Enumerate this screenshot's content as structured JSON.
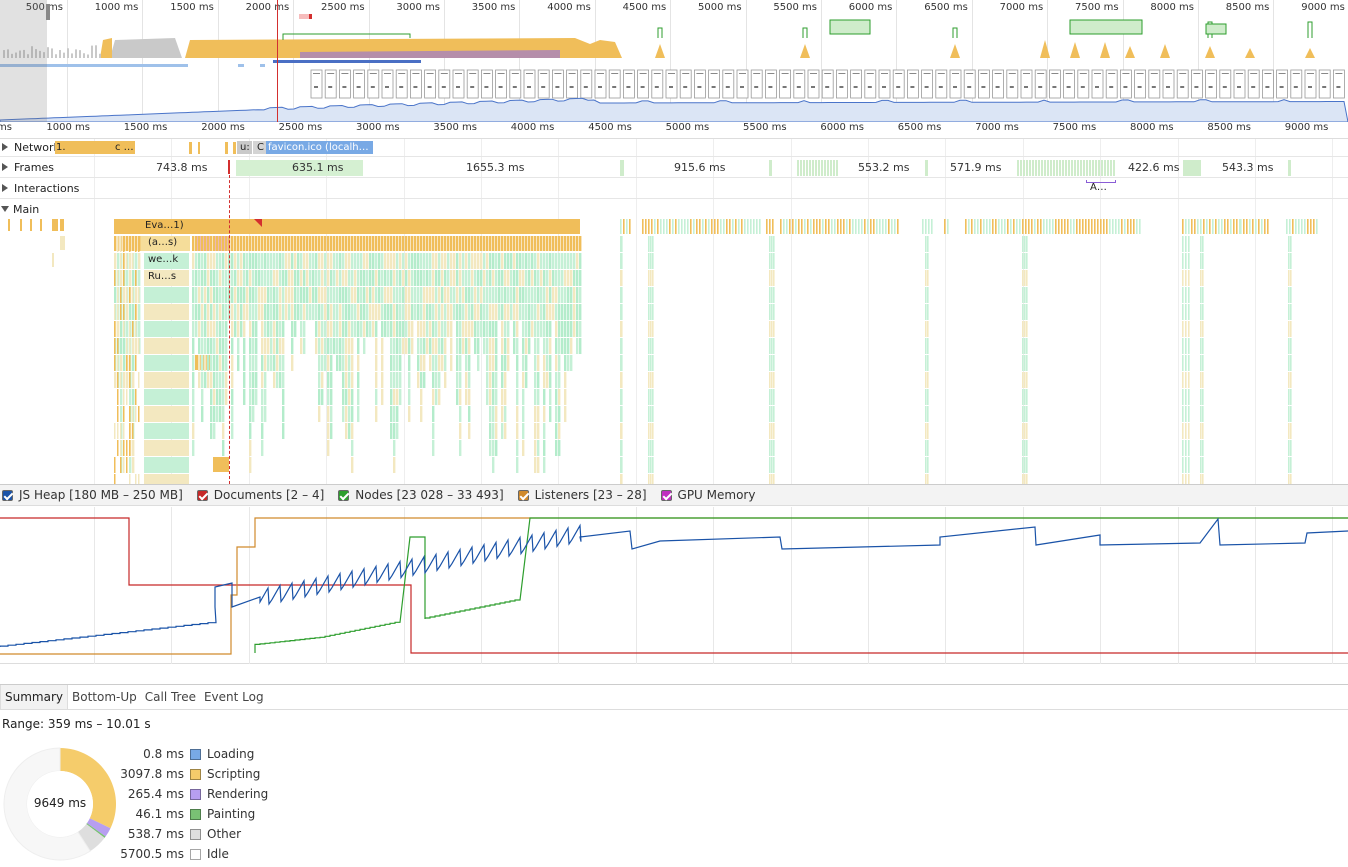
{
  "overview": {
    "ticks": [
      "500 ms",
      "1000 ms",
      "1500 ms",
      "2000 ms",
      "2500 ms",
      "3000 ms",
      "3500 ms",
      "4000 ms",
      "4500 ms",
      "5000 ms",
      "5500 ms",
      "6000 ms",
      "6500 ms",
      "7000 ms",
      "7500 ms",
      "8000 ms",
      "8500 ms",
      "9000 ms"
    ]
  },
  "ruler": {
    "ticks": [
      "ms",
      "1000 ms",
      "1500 ms",
      "2000 ms",
      "2500 ms",
      "3000 ms",
      "3500 ms",
      "4000 ms",
      "4500 ms",
      "5000 ms",
      "5500 ms",
      "6000 ms",
      "6500 ms",
      "7000 ms",
      "7500 ms",
      "8000 ms",
      "8500 ms",
      "9000 ms"
    ]
  },
  "tracks": {
    "network": {
      "label": "Network",
      "items": [
        "1.",
        "c …",
        "u:",
        "C",
        "favicon.ico (localh…"
      ]
    },
    "frames": {
      "label": "Frames",
      "durations": [
        "743.8 ms",
        "635.1 ms",
        "1655.3 ms",
        "915.6 ms",
        "553.2 ms",
        "571.9 ms",
        "422.6 ms",
        "543.3 ms"
      ]
    },
    "interactions": {
      "label": "Interactions",
      "items": [
        "A…"
      ]
    },
    "main": {
      "label": "Main",
      "events": [
        "Eva…1)",
        "(a…s)",
        "we…k",
        "Ru…s"
      ]
    }
  },
  "counters": [
    {
      "label": "JS Heap [180 MB – 250 MB]",
      "color": "#1a53a8",
      "checked": true
    },
    {
      "label": "Documents [2 – 4]",
      "color": "#c62828",
      "checked": true
    },
    {
      "label": "Nodes [23 028 – 33 493]",
      "color": "#2e9e2e",
      "checked": true
    },
    {
      "label": "Listeners [23 – 28]",
      "color": "#d08a2c",
      "checked": true
    },
    {
      "label": "GPU Memory",
      "color": "#c02fc0",
      "checked": true
    }
  ],
  "tabs": [
    "Summary",
    "Bottom-Up",
    "Call Tree",
    "Event Log"
  ],
  "active_tab": "Summary",
  "summary": {
    "range": "Range: 359 ms – 10.01 s",
    "total": "9649 ms",
    "rows": [
      {
        "value": "0.8 ms",
        "label": "Loading",
        "color": "#78a9e5"
      },
      {
        "value": "3097.8 ms",
        "label": "Scripting",
        "color": "#f5cc6b"
      },
      {
        "value": "265.4 ms",
        "label": "Rendering",
        "color": "#b79ef0"
      },
      {
        "value": "46.1 ms",
        "label": "Painting",
        "color": "#79c174"
      },
      {
        "value": "538.7 ms",
        "label": "Other",
        "color": "#dedede"
      },
      {
        "value": "5700.5 ms",
        "label": "Idle",
        "color": "#ffffff"
      }
    ],
    "fractions": [
      0.0001,
      0.321,
      0.0275,
      0.0048,
      0.0558,
      0.5908
    ]
  }
}
